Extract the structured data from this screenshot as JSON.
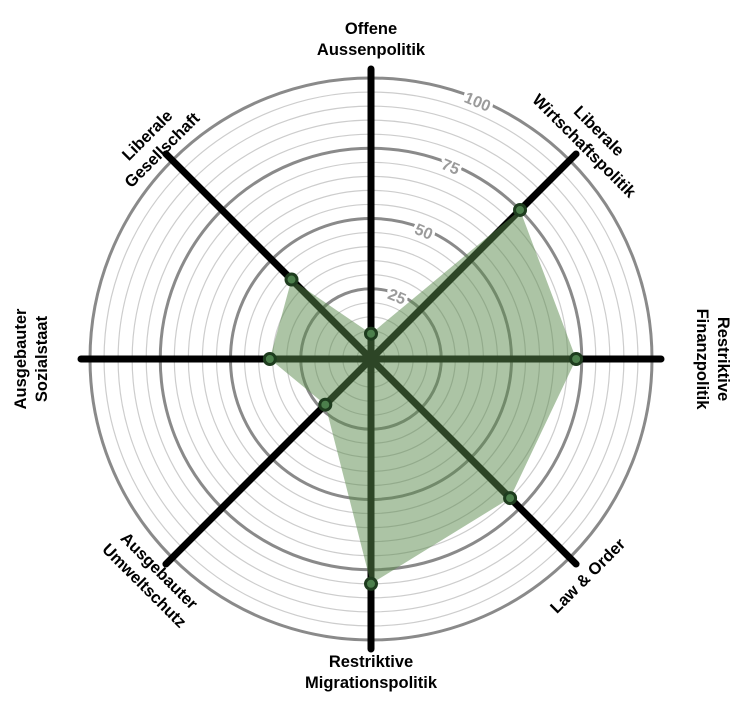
{
  "chart_data": {
    "type": "radar",
    "title": "",
    "categories": [
      "Offene Aussenpolitik",
      "Liberale Wirtschaftspolitik",
      "Restriktive Finanzpolitik",
      "Law & Order",
      "Restriktive Migrationspolitik",
      "Ausgebauter Umweltschutz",
      "Ausgebauter Sozialstaat",
      "Liberale Gesellschaft"
    ],
    "category_label_lines": [
      [
        "Offene",
        "Aussenpolitik"
      ],
      [
        "Liberale",
        "Wirtschaftspolitik"
      ],
      [
        "Restriktive",
        "Finanzpolitik"
      ],
      [
        "Law & Order"
      ],
      [
        "Restriktive",
        "Migrationspolitik"
      ],
      [
        "Ausgebauter",
        "Umweltschutz"
      ],
      [
        "Ausgebauter",
        "Sozialstaat"
      ],
      [
        "Liberale",
        "Gesellschaft"
      ]
    ],
    "values": [
      9,
      75,
      73,
      70,
      80,
      23,
      36,
      40
    ],
    "rlim": [
      0,
      100
    ],
    "ring_minor_step": 5,
    "ring_major_step": 25,
    "ring_tick_values": [
      25,
      50,
      75,
      100
    ],
    "ring_tick_labels": [
      "25",
      "50",
      "75",
      "100"
    ],
    "grid": true,
    "legend": false,
    "axes_start": "top",
    "axes_direction": "clockwise"
  },
  "style": {
    "background": "#ffffff",
    "fill_color": "#5a8a4c",
    "fill_opacity": 0.5,
    "point_fill": "#4c7f4c",
    "point_stroke": "#1e3c1e",
    "axis_color": "#000000",
    "center_ring_color": "#000000",
    "ring_minor_color": "#cdcdcd",
    "ring_major_color": "#8a8a8a",
    "tick_label_color": "#9b9b9b",
    "label_color": "#000000"
  }
}
